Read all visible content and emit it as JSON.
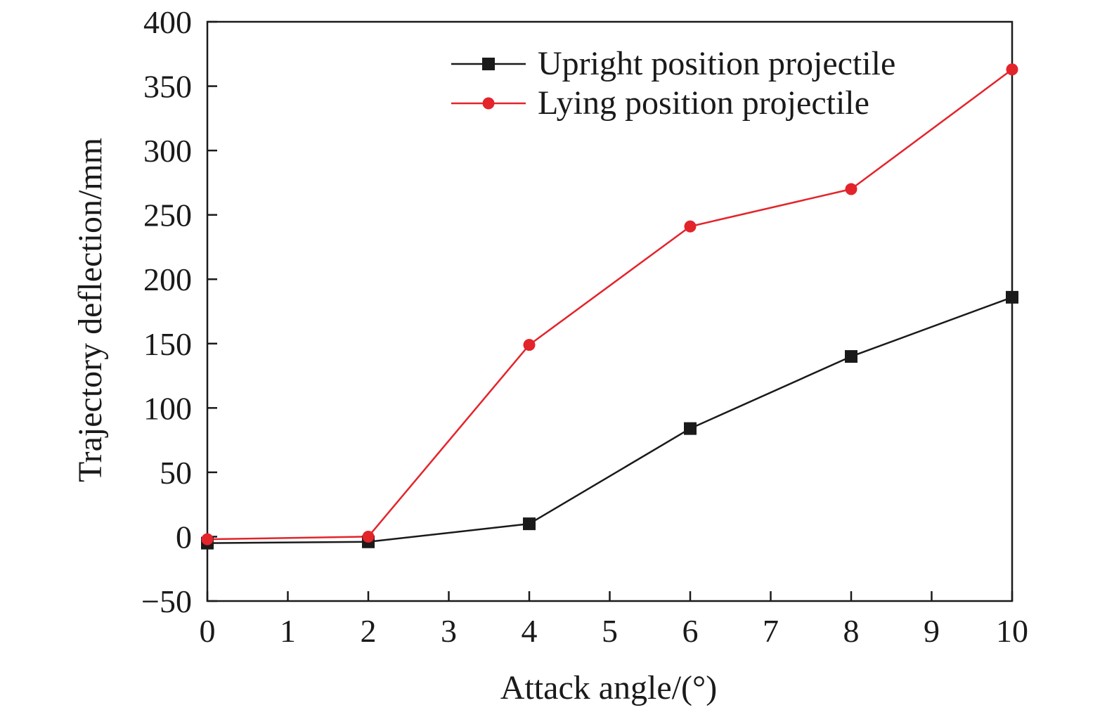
{
  "chart_data": {
    "type": "line",
    "title": "",
    "xlabel": "Attack angle/(°)",
    "ylabel": "Trajectory deflection/mm",
    "xlim": [
      0,
      10
    ],
    "ylim": [
      -50,
      400
    ],
    "x_ticks": [
      0,
      1,
      2,
      3,
      4,
      5,
      6,
      7,
      8,
      9,
      10
    ],
    "y_ticks": [
      -50,
      0,
      50,
      100,
      150,
      200,
      250,
      300,
      350,
      400
    ],
    "x_tick_labels": [
      "0",
      "1",
      "2",
      "3",
      "4",
      "5",
      "6",
      "7",
      "8",
      "9",
      "10"
    ],
    "y_tick_labels": [
      "−50",
      "0",
      "50",
      "100",
      "150",
      "200",
      "250",
      "300",
      "350",
      "400"
    ],
    "grid": false,
    "legend_position": "top-right",
    "series": [
      {
        "name": "Upright position projectile",
        "color": "#1a1a1a",
        "marker": "square",
        "x": [
          0,
          2,
          4,
          6,
          8,
          10
        ],
        "y": [
          -5,
          -4,
          10,
          84,
          140,
          186
        ]
      },
      {
        "name": "Lying position projectile",
        "color": "#e3242b",
        "marker": "circle",
        "x": [
          0,
          2,
          4,
          6,
          8,
          10
        ],
        "y": [
          -2,
          0,
          149,
          241,
          270,
          363
        ]
      }
    ]
  }
}
